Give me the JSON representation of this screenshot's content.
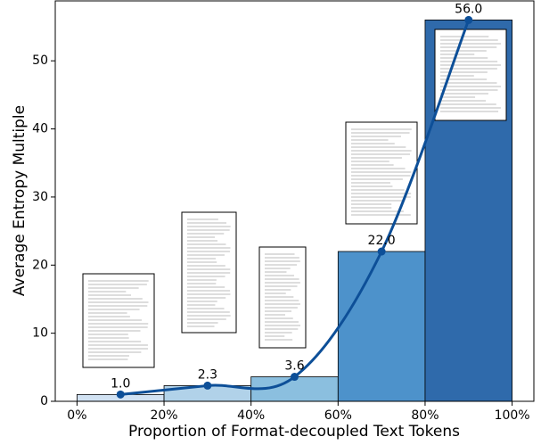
{
  "chart_data": {
    "type": "histogram",
    "xlabel": "Proportion of Format-decoupled Text Tokens",
    "ylabel": "Average Entropy Multiple",
    "bins": [
      0,
      20,
      40,
      60,
      80,
      100
    ],
    "values": [
      1.0,
      2.3,
      3.6,
      22.0,
      56.0
    ],
    "value_labels": [
      "1.0",
      "2.3",
      "3.6",
      "22.0",
      "56.0"
    ],
    "colors": [
      "#d1e2f3",
      "#b1d2e9",
      "#8bbfdf",
      "#4d92cb",
      "#2f6aab"
    ],
    "line_color": "#0d4f98",
    "xlim": [
      -5,
      105
    ],
    "xticks": [
      {
        "value": 0,
        "label": "0%"
      },
      {
        "value": 20,
        "label": "20%"
      },
      {
        "value": 40,
        "label": "40%"
      },
      {
        "value": 60,
        "label": "60%"
      },
      {
        "value": 80,
        "label": "80%"
      },
      {
        "value": 100,
        "label": "100%"
      }
    ],
    "ylim": [
      0,
      58.8
    ],
    "yticks": [
      0,
      10,
      20,
      30,
      40,
      50
    ]
  }
}
